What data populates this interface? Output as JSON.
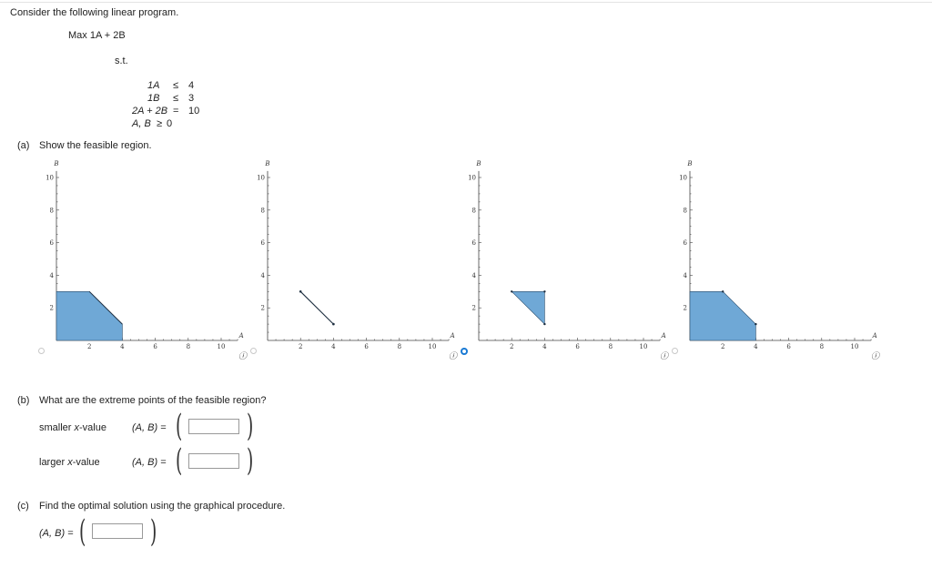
{
  "intro": "Consider the following linear program.",
  "objective": "Max 1A + 2B",
  "st": "s.t.",
  "constraints": [
    {
      "lhs": "1A",
      "op": "≤",
      "rhs": "4"
    },
    {
      "lhs": "1B",
      "op": "≤",
      "rhs": "3"
    },
    {
      "lhs": "2A + 2B",
      "op": "=",
      "rhs": "10"
    },
    {
      "lhs": "A, B",
      "op": "≥",
      "rhs": "0"
    }
  ],
  "part_a": {
    "label": "(a)",
    "question": "Show the feasible region."
  },
  "axes": {
    "xlabel": "A",
    "ylabel": "B",
    "xticks": [
      2,
      4,
      6,
      8,
      10
    ],
    "yticks": [
      2,
      4,
      6,
      8,
      10
    ]
  },
  "graphs": [
    {
      "id": "g1",
      "selected": false,
      "shape": "polygon",
      "points": [
        [
          0,
          0
        ],
        [
          4,
          0
        ],
        [
          4,
          1
        ],
        [
          2,
          3
        ],
        [
          0,
          3
        ]
      ],
      "line": [
        [
          2,
          3
        ],
        [
          4,
          1
        ]
      ],
      "fill": "#6fa8d6"
    },
    {
      "id": "g2",
      "selected": false,
      "shape": "segment",
      "points": [
        [
          2,
          3
        ],
        [
          4,
          1
        ]
      ],
      "fill": "none"
    },
    {
      "id": "g3",
      "selected": true,
      "shape": "polygon",
      "points": [
        [
          2,
          3
        ],
        [
          4,
          3
        ],
        [
          4,
          1
        ]
      ],
      "fill": "#6fa8d6"
    },
    {
      "id": "g4",
      "selected": false,
      "shape": "polygon",
      "points": [
        [
          0,
          0
        ],
        [
          4,
          0
        ],
        [
          4,
          1
        ],
        [
          2,
          3
        ],
        [
          0,
          3
        ]
      ],
      "fill": "#6fa8d6"
    }
  ],
  "part_b": {
    "label": "(b)",
    "question": "What are the extreme points of the feasible region?",
    "rows": [
      {
        "label_pre": "smaller ",
        "label_var": "x",
        "label_post": "-value",
        "eq": "(A, B)  =",
        "value": ""
      },
      {
        "label_pre": "larger ",
        "label_var": "x",
        "label_post": "-value",
        "eq": "(A, B)  =",
        "value": ""
      }
    ]
  },
  "part_c": {
    "label": "(c)",
    "question": "Find the optimal solution using the graphical procedure.",
    "eq": "(A, B) =",
    "value": ""
  },
  "paren_open": "(",
  "paren_close": ")",
  "info_glyph": "ⓘ",
  "colors": {
    "fill": "#6fa8d6",
    "stroke": "#2d4f6e",
    "radio_on": "#1a7ad4"
  }
}
